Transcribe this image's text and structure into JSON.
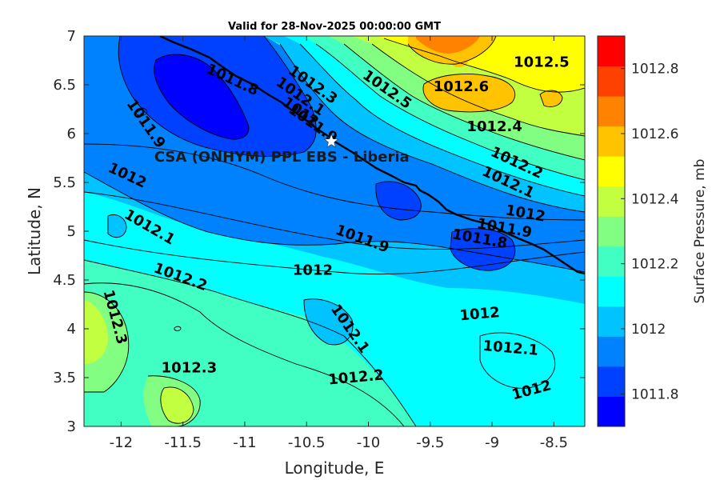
{
  "title": "Valid for 28-Nov-2025 00:00:00 GMT",
  "xlabel": "Longitude, E",
  "ylabel": "Latitude, N",
  "colorbar_label": "Surface Pressure, mb",
  "site_label": "CSA (ONHYM) PPL EBS  - Liberia",
  "map_data": {
    "type": "filled-contour",
    "variable": "Surface Pressure",
    "units": "mb",
    "xlim": [
      -12.3,
      -8.25
    ],
    "ylim": [
      3,
      7
    ],
    "x_ticks": [
      {
        "value": -12,
        "label": "-12"
      },
      {
        "value": -11.5,
        "label": "-11.5"
      },
      {
        "value": -11,
        "label": "-11"
      },
      {
        "value": -10.5,
        "label": "-10.5"
      },
      {
        "value": -10,
        "label": "-10"
      },
      {
        "value": -9.5,
        "label": "-9.5"
      },
      {
        "value": -9,
        "label": "-9"
      },
      {
        "value": -8.5,
        "label": "-8.5"
      }
    ],
    "y_ticks": [
      {
        "value": 3,
        "label": "3"
      },
      {
        "value": 3.5,
        "label": "3.5"
      },
      {
        "value": 4,
        "label": "4"
      },
      {
        "value": 4.5,
        "label": "4.5"
      },
      {
        "value": 5,
        "label": "5"
      },
      {
        "value": 5.5,
        "label": "5.5"
      },
      {
        "value": 6,
        "label": "6"
      },
      {
        "value": 6.5,
        "label": "6.5"
      },
      {
        "value": 7,
        "label": "7"
      }
    ],
    "site": {
      "lon": -10.3,
      "lat": 5.92
    },
    "contour_labels": [
      {
        "text": "1011.8",
        "lon": -11.1,
        "lat": 6.55,
        "angle": 25
      },
      {
        "text": "1011.9",
        "lon": -11.8,
        "lat": 6.1,
        "angle": 55
      },
      {
        "text": "1012.3",
        "lon": -10.45,
        "lat": 6.5,
        "angle": 35
      },
      {
        "text": "1012.1",
        "lon": -10.55,
        "lat": 6.38,
        "angle": 35
      },
      {
        "text": "1012",
        "lon": -10.55,
        "lat": 6.22,
        "angle": 35
      },
      {
        "text": "1011.9",
        "lon": -10.45,
        "lat": 6.1,
        "angle": 35
      },
      {
        "text": "1012.5",
        "lon": -9.85,
        "lat": 6.45,
        "angle": 35
      },
      {
        "text": "1012.6",
        "lon": -9.25,
        "lat": 6.48,
        "angle": 0
      },
      {
        "text": "1012.5",
        "lon": -8.6,
        "lat": 6.73,
        "angle": 0
      },
      {
        "text": "1012.4",
        "lon": -8.98,
        "lat": 6.07,
        "angle": 0
      },
      {
        "text": "1012.2",
        "lon": -8.8,
        "lat": 5.7,
        "angle": 25
      },
      {
        "text": "1012.1",
        "lon": -8.87,
        "lat": 5.5,
        "angle": 25
      },
      {
        "text": "1012",
        "lon": -8.73,
        "lat": 5.18,
        "angle": 10
      },
      {
        "text": "1011.9",
        "lon": -8.9,
        "lat": 5.03,
        "angle": 10
      },
      {
        "text": "1011.8",
        "lon": -9.1,
        "lat": 4.92,
        "angle": 10
      },
      {
        "text": "1011.9",
        "lon": -10.05,
        "lat": 4.92,
        "angle": 20
      },
      {
        "text": "1012",
        "lon": -10.45,
        "lat": 4.6,
        "angle": 0
      },
      {
        "text": "1012",
        "lon": -11.95,
        "lat": 5.57,
        "angle": 25
      },
      {
        "text": "1012.1",
        "lon": -11.77,
        "lat": 5.04,
        "angle": 30
      },
      {
        "text": "1012.2",
        "lon": -11.52,
        "lat": 4.53,
        "angle": 20
      },
      {
        "text": "1012.3",
        "lon": -12.05,
        "lat": 4.12,
        "angle": 75
      },
      {
        "text": "1012.3",
        "lon": -11.45,
        "lat": 3.6,
        "angle": 0
      },
      {
        "text": "1012.1",
        "lon": -10.15,
        "lat": 4.0,
        "angle": 55
      },
      {
        "text": "1012.2",
        "lon": -10.1,
        "lat": 3.5,
        "angle": -5
      },
      {
        "text": "1012",
        "lon": -9.1,
        "lat": 4.15,
        "angle": -5
      },
      {
        "text": "1012.1",
        "lon": -8.85,
        "lat": 3.8,
        "angle": 5
      },
      {
        "text": "1012",
        "lon": -8.68,
        "lat": 3.37,
        "angle": -15
      }
    ]
  },
  "colorbar": {
    "min": 1011.7,
    "max": 1012.9,
    "colors": [
      "#0000ff",
      "#0041ff",
      "#0082ff",
      "#00c3ff",
      "#00ffff",
      "#41ffc3",
      "#82ff82",
      "#c3ff41",
      "#ffff00",
      "#ffc300",
      "#ff8200",
      "#ff4100",
      "#ff0000"
    ],
    "ticks": [
      {
        "value": 1011.8,
        "label": "1011.8"
      },
      {
        "value": 1012,
        "label": "1012"
      },
      {
        "value": 1012.2,
        "label": "1012.2"
      },
      {
        "value": 1012.4,
        "label": "1012.4"
      },
      {
        "value": 1012.6,
        "label": "1012.6"
      },
      {
        "value": 1012.8,
        "label": "1012.8"
      }
    ]
  }
}
